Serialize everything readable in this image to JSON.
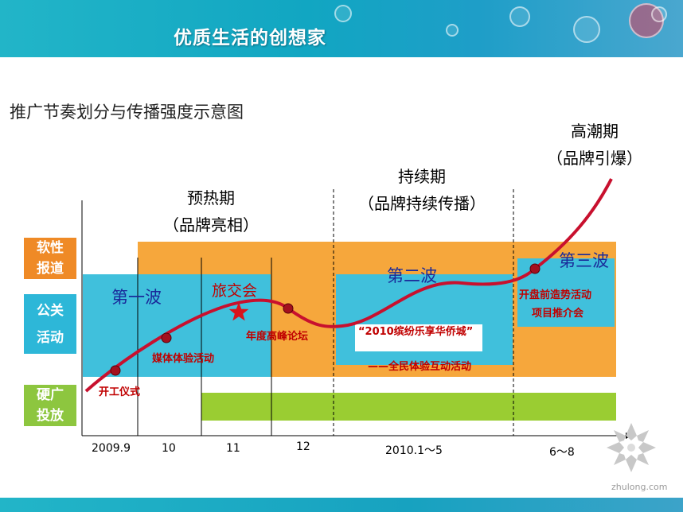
{
  "header": {
    "title": "优质生活的创想家"
  },
  "subtitle": "推广节奏划分与传播强度示意图",
  "phases": [
    {
      "name": "预热期",
      "sub": "（品牌亮相）"
    },
    {
      "name": "持续期",
      "sub": "（品牌持续传播）"
    },
    {
      "name": "高潮期",
      "sub": "（品牌引爆）"
    }
  ],
  "categories": [
    {
      "line1": "软性",
      "line2": "报道",
      "color": "#ef8a26"
    },
    {
      "line1": "公关",
      "line2": "活动",
      "color": "#2db7d8"
    },
    {
      "line1": "硬广",
      "line2": "投放",
      "color": "#8dc63f"
    }
  ],
  "waves": {
    "first": "第一波",
    "second": "第二波",
    "third": "第三波"
  },
  "events": {
    "travel_fair": "旅交会",
    "launch": "开工仪式",
    "media": "媒体体验活动",
    "forum": "年度高峰论坛",
    "city_event": "“2010缤纷乐享华侨城”",
    "all_people": "——全民体验互动活动",
    "presale": "开盘前造势活动",
    "promo": "项目推介会"
  },
  "timeline": [
    "2009.9",
    "10",
    "11",
    "12",
    "2010.1～5",
    "6～8"
  ],
  "watermark": "zhulong.com",
  "colors": {
    "orange": "#f6a73c",
    "blue": "#40c0dc",
    "green": "#9acd32",
    "curve": "#c8102e",
    "star": "#d9141b"
  }
}
